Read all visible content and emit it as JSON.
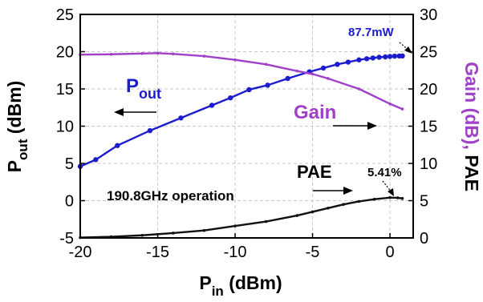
{
  "chart_data": {
    "type": "line",
    "xlabel": {
      "main": "P",
      "sub": "in",
      "rest": " (dBm)"
    },
    "ylabel_left": {
      "main": "P",
      "sub": "out",
      "rest": " (dBm)"
    },
    "ylabel_right": {
      "main": "Gain (dB), ",
      "tail": "PAE"
    },
    "x_ticks": [
      "-20",
      "-15",
      "-10",
      "-5",
      "0"
    ],
    "y_left_ticks": [
      "-5",
      "0",
      "5",
      "10",
      "15",
      "20",
      "25"
    ],
    "y_right_ticks": [
      "0",
      "5",
      "10",
      "15",
      "20",
      "25",
      "30"
    ],
    "xlim": [
      -20,
      1.5
    ],
    "ylim_left": [
      -5,
      25
    ],
    "ylim_right": [
      0,
      30
    ],
    "grid": true,
    "series": [
      {
        "name": "Pout",
        "axis": "left",
        "color": "#1c1ccf",
        "x": [
          -20,
          -19,
          -17.6,
          -15.5,
          -13.5,
          -11.5,
          -10.3,
          -9.1,
          -7.9,
          -6.6,
          -5.2,
          -4.3,
          -3.4,
          -2.7,
          -2.0,
          -1.5,
          -1.1,
          -0.7,
          -0.3,
          0.0,
          0.3,
          0.6,
          0.8
        ],
        "y": [
          4.6,
          5.5,
          7.4,
          9.4,
          11.1,
          12.8,
          13.8,
          14.9,
          15.5,
          16.4,
          17.3,
          17.8,
          18.3,
          18.6,
          18.9,
          19.05,
          19.15,
          19.25,
          19.3,
          19.35,
          19.4,
          19.42,
          19.43
        ]
      },
      {
        "name": "Gain",
        "axis": "right",
        "color": "#a040c8",
        "x": [
          -20,
          -18,
          -16,
          -15,
          -14,
          -12,
          -10,
          -8,
          -6,
          -5,
          -4,
          -2,
          0,
          0.8
        ],
        "y": [
          24.6,
          24.65,
          24.75,
          24.8,
          24.7,
          24.4,
          23.9,
          23.3,
          22.4,
          22.0,
          21.4,
          20.0,
          18.0,
          17.3
        ]
      },
      {
        "name": "PAE",
        "axis": "right",
        "color": "#111111",
        "x": [
          -20,
          -18,
          -16,
          -14,
          -12,
          -10,
          -8,
          -6,
          -5,
          -4,
          -3,
          -2,
          -1,
          0,
          0.5,
          0.8
        ],
        "y": [
          0.05,
          0.15,
          0.35,
          0.65,
          1.0,
          1.6,
          2.2,
          3.0,
          3.5,
          4.0,
          4.5,
          4.9,
          5.2,
          5.41,
          5.38,
          5.3
        ]
      }
    ],
    "annotations": {
      "pout": {
        "main": "P",
        "sub": "out"
      },
      "gain": "Gain",
      "pae": "PAE",
      "peak_power": "87.7mW",
      "peak_pae": "5.41%",
      "operation": "190.8GHz operation"
    },
    "colors": {
      "pout": "#1c1ccf",
      "gain": "#a040c8",
      "pae": "#111111",
      "grid": "#c8c8c8",
      "pae_text": "#000000"
    }
  }
}
